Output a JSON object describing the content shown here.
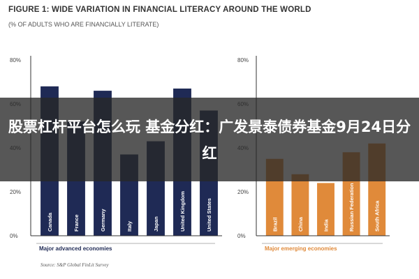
{
  "title": "FIGURE 1: WIDE VARIATION IN FINANCIAL LITERACY AROUND THE WORLD",
  "subtitle": "(% OF ADULTS WHO ARE FINANCIALLY LITERATE)",
  "source": "Source: S&P Global FinLit Survey",
  "overlay_text": "股票杠杆平台怎么玩 基金分红：广发景泰债券基金9月24日分红",
  "colors": {
    "advanced": "#1f2a55",
    "emerging": "#e08a3a",
    "axis": "#333333",
    "grid": "#cccccc"
  },
  "chart_data": [
    {
      "type": "bar",
      "group_label": "Major advanced economies",
      "categories": [
        "Canada",
        "France",
        "Germany",
        "Italy",
        "Japan",
        "United Kingdom",
        "United States"
      ],
      "values": [
        68,
        52,
        66,
        37,
        43,
        67,
        57
      ],
      "ylim": [
        0,
        80
      ],
      "yticks": [
        "0%",
        "20%",
        "40%",
        "60%",
        "80%"
      ],
      "color": "#1f2a55"
    },
    {
      "type": "bar",
      "group_label": "Major emerging economies",
      "categories": [
        "Brazil",
        "China",
        "India",
        "Russian Federation",
        "South Africa"
      ],
      "values": [
        35,
        28,
        24,
        38,
        42
      ],
      "ylim": [
        0,
        80
      ],
      "yticks": [
        "0%",
        "20%",
        "40%",
        "60%",
        "80%"
      ],
      "color": "#e08a3a"
    }
  ]
}
